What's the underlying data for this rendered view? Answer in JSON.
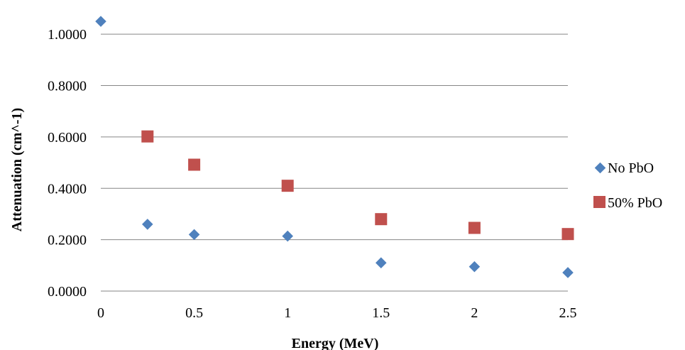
{
  "chart_data": {
    "type": "scatter",
    "xlabel": "Energy (MeV)",
    "ylabel": "Attenuation (cm^-1)",
    "xlim": [
      0,
      2.5
    ],
    "ylim": [
      0,
      1.1
    ],
    "x_ticks": [
      "0",
      "0.5",
      "1",
      "1.5",
      "2",
      "2.5"
    ],
    "y_ticks": [
      "0.0000",
      "0.2000",
      "0.4000",
      "0.6000",
      "0.8000",
      "1.0000"
    ],
    "grid": "horizontal",
    "legend_position": "right",
    "series": [
      {
        "name": "No PbO",
        "marker": "diamond",
        "color": "#4F81BD",
        "x": [
          0,
          0.25,
          0.5,
          1,
          1.5,
          2,
          2.5
        ],
        "y": [
          1.05,
          0.26,
          0.22,
          0.214,
          0.11,
          0.095,
          0.072
        ]
      },
      {
        "name": "50% PbO",
        "marker": "square",
        "color": "#C0504D",
        "x": [
          0.25,
          0.5,
          1,
          1.5,
          2,
          2.5
        ],
        "y": [
          0.602,
          0.492,
          0.41,
          0.28,
          0.246,
          0.222
        ]
      }
    ]
  }
}
